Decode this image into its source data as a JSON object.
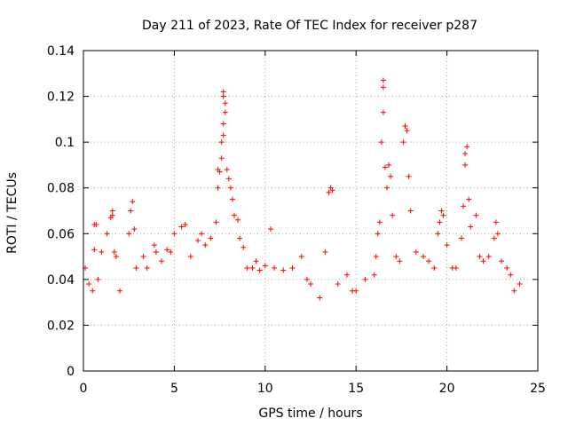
{
  "chart_data": {
    "type": "scatter",
    "title": "Day 211 of 2023, Rate Of TEC Index for receiver p287",
    "xlabel": "GPS time / hours",
    "ylabel": "ROTI / TECUs",
    "xlim": [
      0,
      25
    ],
    "ylim": [
      0,
      0.14
    ],
    "x_ticks": [
      "0",
      "5",
      "10",
      "15",
      "20",
      "25"
    ],
    "y_ticks": [
      "0",
      "0.02",
      "0.04",
      "0.06",
      "0.08",
      "0.1",
      "0.12",
      "0.14"
    ],
    "grid": true,
    "marker": "plus",
    "color": "#ff0000",
    "series": [
      {
        "points": [
          [
            0.1,
            0.045
          ],
          [
            0.3,
            0.038
          ],
          [
            0.5,
            0.035
          ],
          [
            0.6,
            0.053
          ],
          [
            0.6,
            0.064
          ],
          [
            0.7,
            0.064
          ],
          [
            0.8,
            0.04
          ],
          [
            1.0,
            0.052
          ],
          [
            1.3,
            0.06
          ],
          [
            1.5,
            0.067
          ],
          [
            1.6,
            0.068
          ],
          [
            1.6,
            0.07
          ],
          [
            1.7,
            0.052
          ],
          [
            1.8,
            0.05
          ],
          [
            2.0,
            0.035
          ],
          [
            2.5,
            0.06
          ],
          [
            2.6,
            0.07
          ],
          [
            2.7,
            0.074
          ],
          [
            2.8,
            0.062
          ],
          [
            2.9,
            0.045
          ],
          [
            3.3,
            0.05
          ],
          [
            3.5,
            0.045
          ],
          [
            3.9,
            0.055
          ],
          [
            4.0,
            0.052
          ],
          [
            4.3,
            0.048
          ],
          [
            4.6,
            0.053
          ],
          [
            4.8,
            0.052
          ],
          [
            5.0,
            0.06
          ],
          [
            5.4,
            0.063
          ],
          [
            5.6,
            0.064
          ],
          [
            5.9,
            0.05
          ],
          [
            6.3,
            0.057
          ],
          [
            6.5,
            0.06
          ],
          [
            6.7,
            0.055
          ],
          [
            7.0,
            0.058
          ],
          [
            7.3,
            0.065
          ],
          [
            7.4,
            0.08
          ],
          [
            7.4,
            0.088
          ],
          [
            7.5,
            0.087
          ],
          [
            7.6,
            0.093
          ],
          [
            7.6,
            0.1
          ],
          [
            7.7,
            0.122
          ],
          [
            7.7,
            0.12
          ],
          [
            7.8,
            0.117
          ],
          [
            7.8,
            0.113
          ],
          [
            7.7,
            0.108
          ],
          [
            7.7,
            0.103
          ],
          [
            7.9,
            0.088
          ],
          [
            8.0,
            0.084
          ],
          [
            8.1,
            0.08
          ],
          [
            8.2,
            0.075
          ],
          [
            8.3,
            0.068
          ],
          [
            8.5,
            0.066
          ],
          [
            8.6,
            0.058
          ],
          [
            8.8,
            0.054
          ],
          [
            9.0,
            0.045
          ],
          [
            9.3,
            0.045
          ],
          [
            9.5,
            0.048
          ],
          [
            9.7,
            0.044
          ],
          [
            10.0,
            0.046
          ],
          [
            10.3,
            0.062
          ],
          [
            10.5,
            0.045
          ],
          [
            11.0,
            0.044
          ],
          [
            11.5,
            0.045
          ],
          [
            12.0,
            0.05
          ],
          [
            12.3,
            0.04
          ],
          [
            12.5,
            0.038
          ],
          [
            13.0,
            0.032
          ],
          [
            13.3,
            0.052
          ],
          [
            13.5,
            0.078
          ],
          [
            13.6,
            0.08
          ],
          [
            13.7,
            0.079
          ],
          [
            14.0,
            0.038
          ],
          [
            14.5,
            0.042
          ],
          [
            14.8,
            0.035
          ],
          [
            15.0,
            0.035
          ],
          [
            15.5,
            0.04
          ],
          [
            16.0,
            0.042
          ],
          [
            16.1,
            0.05
          ],
          [
            16.2,
            0.06
          ],
          [
            16.3,
            0.065
          ],
          [
            16.4,
            0.1
          ],
          [
            16.5,
            0.113
          ],
          [
            16.5,
            0.124
          ],
          [
            16.5,
            0.127
          ],
          [
            16.6,
            0.089
          ],
          [
            16.7,
            0.08
          ],
          [
            16.8,
            0.09
          ],
          [
            16.9,
            0.085
          ],
          [
            17.0,
            0.068
          ],
          [
            17.2,
            0.05
          ],
          [
            17.4,
            0.048
          ],
          [
            17.6,
            0.1
          ],
          [
            17.7,
            0.107
          ],
          [
            17.8,
            0.105
          ],
          [
            17.9,
            0.085
          ],
          [
            18.0,
            0.07
          ],
          [
            18.3,
            0.052
          ],
          [
            18.7,
            0.05
          ],
          [
            19.0,
            0.048
          ],
          [
            19.3,
            0.045
          ],
          [
            19.5,
            0.06
          ],
          [
            19.6,
            0.065
          ],
          [
            19.7,
            0.07
          ],
          [
            19.8,
            0.068
          ],
          [
            20.0,
            0.055
          ],
          [
            20.3,
            0.045
          ],
          [
            20.5,
            0.045
          ],
          [
            20.8,
            0.058
          ],
          [
            20.9,
            0.072
          ],
          [
            21.0,
            0.09
          ],
          [
            21.0,
            0.095
          ],
          [
            21.1,
            0.098
          ],
          [
            21.2,
            0.075
          ],
          [
            21.3,
            0.063
          ],
          [
            21.6,
            0.068
          ],
          [
            21.8,
            0.05
          ],
          [
            22.0,
            0.048
          ],
          [
            22.3,
            0.05
          ],
          [
            22.6,
            0.058
          ],
          [
            22.7,
            0.065
          ],
          [
            22.8,
            0.06
          ],
          [
            23.0,
            0.048
          ],
          [
            23.3,
            0.045
          ],
          [
            23.5,
            0.042
          ],
          [
            23.7,
            0.035
          ],
          [
            24.0,
            0.038
          ]
        ]
      }
    ]
  }
}
